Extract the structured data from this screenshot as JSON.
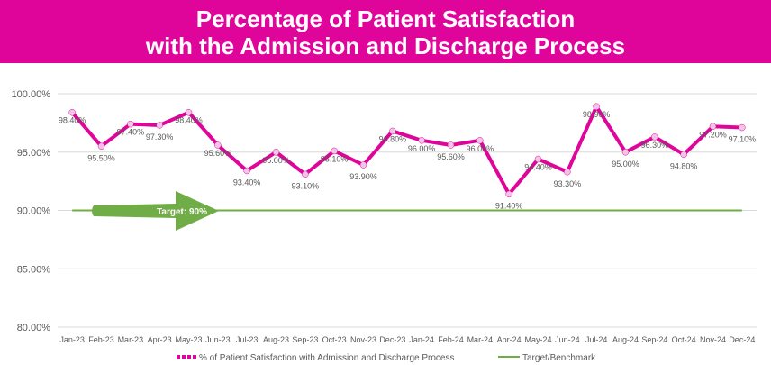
{
  "title": {
    "line1": "Percentage of Patient Satisfaction",
    "line2": "with the Admission and Discharge Process"
  },
  "colors": {
    "banner": "#e0059a",
    "series": "#e0059a",
    "marker": "#f2c4e6",
    "target": "#70ad47",
    "arrow": "#70ad47",
    "axis_text": "#595959",
    "gridline": "#d9d9d9"
  },
  "chart_data": {
    "type": "line",
    "categories": [
      "Jan-23",
      "Feb-23",
      "Mar-23",
      "Apr-23",
      "May-23",
      "Jun-23",
      "Jul-23",
      "Aug-23",
      "Sep-23",
      "Oct-23",
      "Nov-23",
      "Dec-23",
      "Jan-24",
      "Feb-24",
      "Mar-24",
      "Apr-24",
      "May-24",
      "Jun-24",
      "Jul-24",
      "Aug-24",
      "Sep-24",
      "Oct-24",
      "Nov-24",
      "Dec-24"
    ],
    "series": [
      {
        "name": "% of Patient Satisfaction with Admission and Discharge Process",
        "values": [
          98.4,
          95.5,
          97.4,
          97.3,
          98.4,
          95.6,
          93.4,
          95.0,
          93.1,
          95.1,
          93.9,
          96.8,
          96.0,
          95.6,
          96.0,
          91.4,
          94.4,
          93.3,
          98.9,
          95.0,
          96.3,
          94.8,
          97.2,
          97.1
        ],
        "labels": [
          "98.40%",
          "95.50%",
          "97.40%",
          "97.30%",
          "98.40%",
          "95.60%",
          "93.40%",
          "95.00%",
          "93.10%",
          "95.10%",
          "93.90%",
          "96.80%",
          "96.00%",
          "95.60%",
          "96.00%",
          "91.40%",
          "94.40%",
          "93.30%",
          "98.90%",
          "95.00%",
          "96.30%",
          "94.80%",
          "97.20%",
          "97.10%"
        ]
      },
      {
        "name": "Target/Benchmark",
        "values": [
          90,
          90,
          90,
          90,
          90,
          90,
          90,
          90,
          90,
          90,
          90,
          90,
          90,
          90,
          90,
          90,
          90,
          90,
          90,
          90,
          90,
          90,
          90,
          90
        ]
      }
    ],
    "annotation": "Target: 90%",
    "ylim": [
      80,
      100
    ],
    "yticks": [
      "80.00%",
      "85.00%",
      "90.00%",
      "95.00%",
      "100.00%"
    ],
    "grid": true,
    "legend_placement": "bottom"
  }
}
